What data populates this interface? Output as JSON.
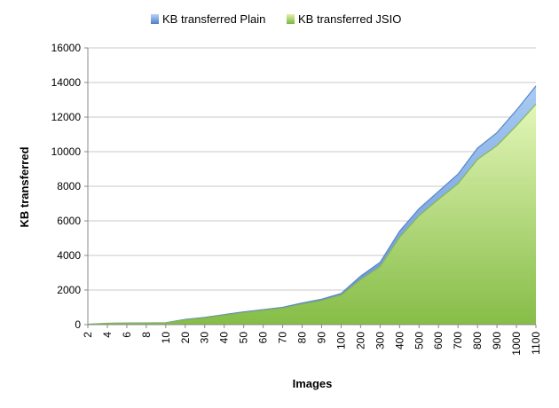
{
  "chart_data": {
    "type": "area",
    "title": "",
    "xlabel": "Images",
    "ylabel": "KB transferred",
    "ylim": [
      0,
      16000
    ],
    "yticks": [
      "0",
      "2000",
      "4000",
      "6000",
      "8000",
      "10000",
      "12000",
      "14000",
      "16000"
    ],
    "grid": "horizontal",
    "legend_placement": "top",
    "categories": [
      "2",
      "4",
      "6",
      "8",
      "10",
      "20",
      "30",
      "40",
      "50",
      "60",
      "70",
      "80",
      "90",
      "100",
      "200",
      "300",
      "400",
      "500",
      "600",
      "700",
      "800",
      "900",
      "1000",
      "1100"
    ],
    "series": [
      {
        "name": "KB transferred Plain",
        "color": "#8fb6e8",
        "stroke": "#5a86c8",
        "values": [
          20,
          80,
          90,
          95,
          110,
          300,
          420,
          580,
          740,
          870,
          1000,
          1250,
          1470,
          1800,
          2800,
          3600,
          5400,
          6700,
          7700,
          8700,
          10200,
          11100,
          12400,
          13800
        ]
      },
      {
        "name": "KB transferred JSIO",
        "color": "#b5df7a",
        "stroke": "#86b850",
        "values": [
          15,
          70,
          80,
          85,
          95,
          270,
          380,
          540,
          690,
          820,
          950,
          1180,
          1390,
          1700,
          2600,
          3350,
          5050,
          6300,
          7250,
          8150,
          9550,
          10350,
          11500,
          12750
        ]
      }
    ]
  },
  "legend": {
    "plain": "KB transferred Plain",
    "jsio": "KB transferred JSIO"
  }
}
